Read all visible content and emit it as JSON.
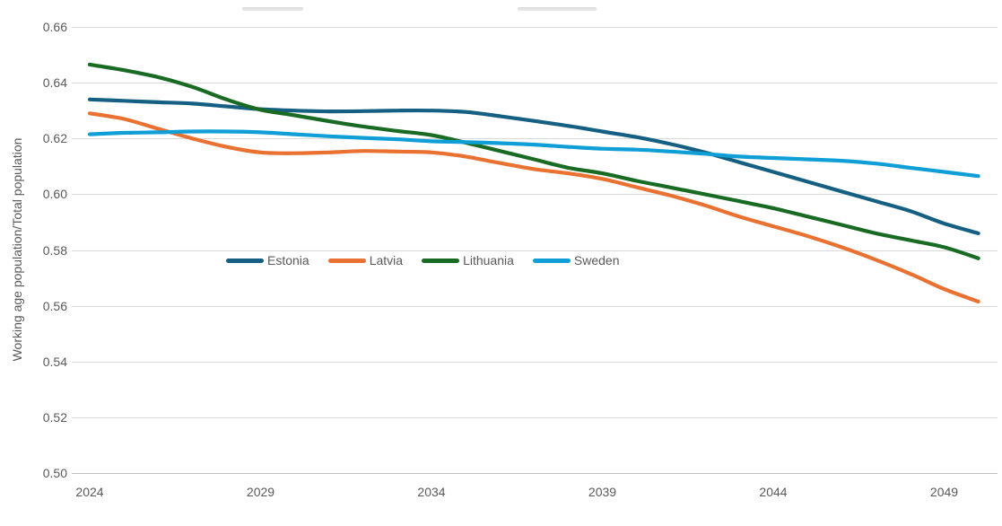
{
  "chart_data": {
    "type": "line",
    "title": "",
    "xlabel": "",
    "ylabel": "Working age population/Total population",
    "grid": "horizontal",
    "legend_position": "inside-center-left",
    "grid_color": "#d9d9d9",
    "baseline_color": "#bfbfbf",
    "text_color": "#595959",
    "ylim": [
      0.5,
      0.66
    ],
    "y_ticks": [
      0.66,
      0.64,
      0.62,
      0.6,
      0.58,
      0.56,
      0.54,
      0.52,
      0.5
    ],
    "y_tick_labels": [
      "0.66",
      "0.64",
      "0.62",
      "0.60",
      "0.58",
      "0.56",
      "0.54",
      "0.52",
      "0.50"
    ],
    "x_tick_years": [
      2024,
      2029,
      2034,
      2039,
      2044,
      2049
    ],
    "x_tick_labels": [
      "2024",
      "2029",
      "2034",
      "2039",
      "2044",
      "2049"
    ],
    "x": [
      2024,
      2025,
      2026,
      2027,
      2028,
      2029,
      2030,
      2031,
      2032,
      2033,
      2034,
      2035,
      2036,
      2037,
      2038,
      2039,
      2040,
      2041,
      2042,
      2043,
      2044,
      2045,
      2046,
      2047,
      2048,
      2049,
      2050
    ],
    "series": [
      {
        "name": "Estonia",
        "color": "#156082",
        "values": [
          0.634,
          0.6335,
          0.633,
          0.6325,
          0.6315,
          0.6305,
          0.63,
          0.6297,
          0.6298,
          0.63,
          0.63,
          0.6295,
          0.628,
          0.6263,
          0.6245,
          0.6225,
          0.6205,
          0.618,
          0.615,
          0.6115,
          0.608,
          0.6045,
          0.601,
          0.5975,
          0.594,
          0.5895,
          0.586
        ]
      },
      {
        "name": "Latvia",
        "color": "#E97132",
        "values": [
          0.629,
          0.627,
          0.6235,
          0.62,
          0.617,
          0.615,
          0.6147,
          0.615,
          0.6155,
          0.6153,
          0.615,
          0.6135,
          0.6112,
          0.609,
          0.6075,
          0.6055,
          0.6025,
          0.5995,
          0.596,
          0.592,
          0.5885,
          0.585,
          0.581,
          0.5765,
          0.5715,
          0.566,
          0.5615
        ]
      },
      {
        "name": "Lithuania",
        "color": "#196B24",
        "values": [
          0.6465,
          0.6445,
          0.642,
          0.6385,
          0.634,
          0.6303,
          0.6283,
          0.6262,
          0.6243,
          0.6227,
          0.6212,
          0.6185,
          0.6155,
          0.6125,
          0.6095,
          0.6075,
          0.6048,
          0.6024,
          0.6,
          0.5975,
          0.595,
          0.592,
          0.589,
          0.586,
          0.5835,
          0.581,
          0.577
        ]
      },
      {
        "name": "Sweden",
        "color": "#0F9ED5",
        "values": [
          0.6215,
          0.622,
          0.6222,
          0.6225,
          0.6225,
          0.6222,
          0.6215,
          0.6208,
          0.6202,
          0.6197,
          0.619,
          0.6187,
          0.6183,
          0.6178,
          0.617,
          0.6163,
          0.616,
          0.6153,
          0.6145,
          0.6135,
          0.613,
          0.6125,
          0.612,
          0.611,
          0.6095,
          0.608,
          0.6065
        ]
      }
    ]
  }
}
